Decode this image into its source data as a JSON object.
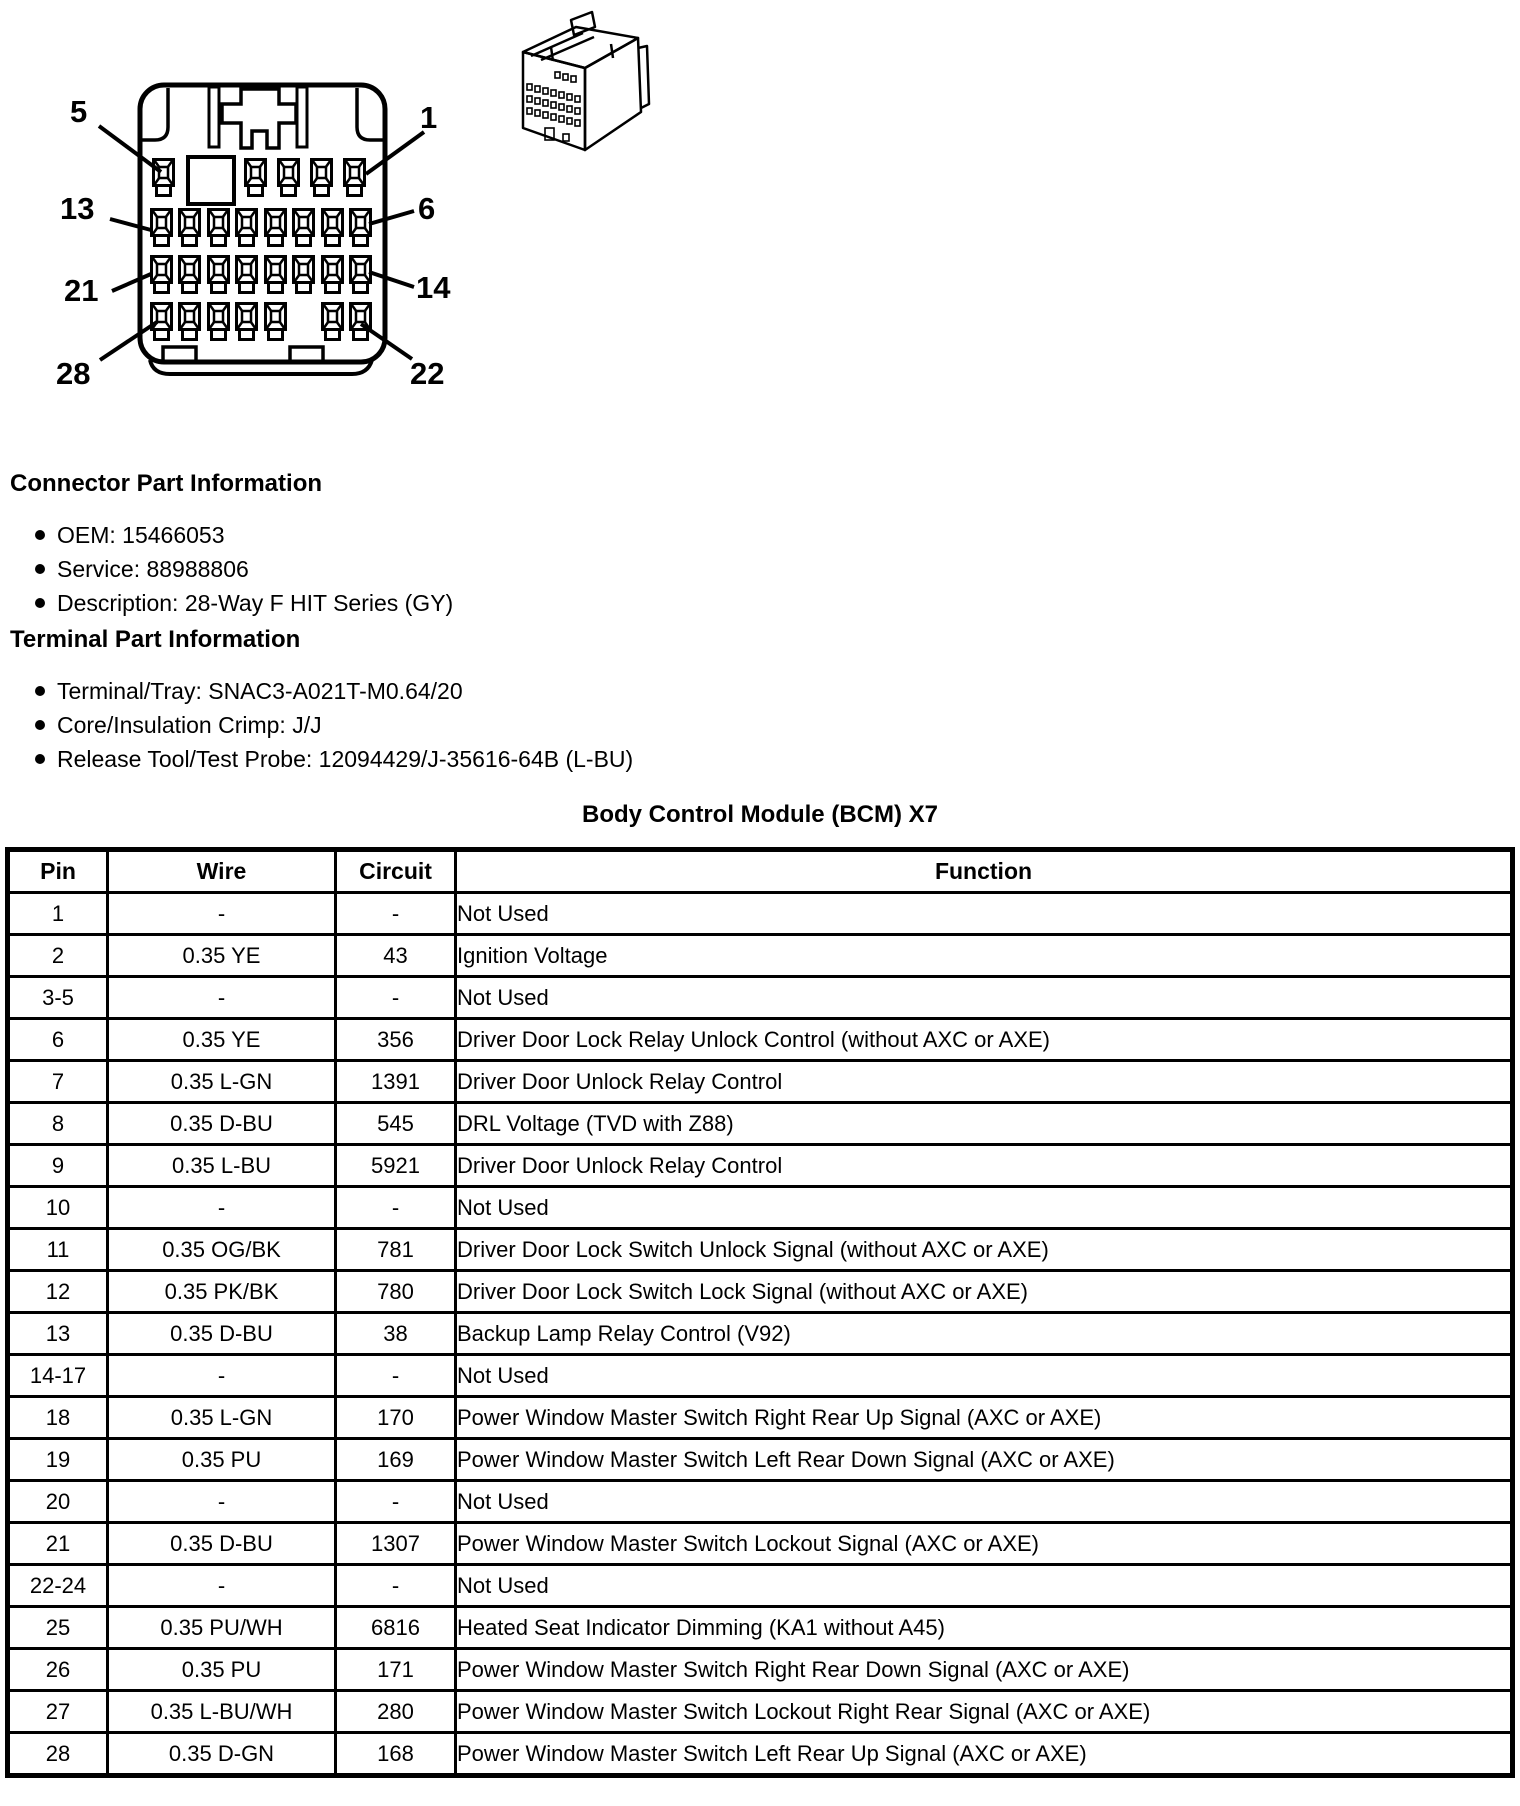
{
  "diagram": {
    "pin_labels": {
      "top_left": "5",
      "top_right": "1",
      "row2_left": "13",
      "row2_right": "6",
      "row3_left": "21",
      "row3_right": "14",
      "bottom_left": "28",
      "bottom_right": "22"
    }
  },
  "connector_info": {
    "heading": "Connector Part Information",
    "items": [
      "OEM: 15466053",
      "Service: 88988806",
      "Description: 28-Way F HIT Series (GY)"
    ]
  },
  "terminal_info": {
    "heading": "Terminal Part Information",
    "items": [
      "Terminal/Tray: SNAC3-A021T-M0.64/20",
      "Core/Insulation Crimp: J/J",
      "Release Tool/Test Probe: 12094429/J-35616-64B (L-BU)"
    ]
  },
  "table": {
    "title": "Body Control Module (BCM) X7",
    "headers": [
      "Pin",
      "Wire",
      "Circuit",
      "Function"
    ],
    "rows": [
      [
        "1",
        "-",
        "-",
        "Not Used"
      ],
      [
        "2",
        "0.35 YE",
        "43",
        "Ignition Voltage"
      ],
      [
        "3-5",
        "-",
        "-",
        "Not Used"
      ],
      [
        "6",
        "0.35 YE",
        "356",
        "Driver Door Lock Relay Unlock Control (without AXC or AXE)"
      ],
      [
        "7",
        "0.35 L-GN",
        "1391",
        "Driver Door Unlock Relay Control"
      ],
      [
        "8",
        "0.35 D-BU",
        "545",
        "DRL Voltage (TVD with Z88)"
      ],
      [
        "9",
        "0.35 L-BU",
        "5921",
        "Driver Door Unlock Relay Control"
      ],
      [
        "10",
        "-",
        "-",
        "Not Used"
      ],
      [
        "11",
        "0.35 OG/BK",
        "781",
        "Driver Door Lock Switch Unlock Signal (without AXC or AXE)"
      ],
      [
        "12",
        "0.35 PK/BK",
        "780",
        "Driver Door Lock Switch Lock Signal (without AXC or AXE)"
      ],
      [
        "13",
        "0.35 D-BU",
        "38",
        "Backup Lamp Relay Control (V92)"
      ],
      [
        "14-17",
        "-",
        "-",
        "Not Used"
      ],
      [
        "18",
        "0.35 L-GN",
        "170",
        "Power Window Master Switch Right Rear Up Signal (AXC or AXE)"
      ],
      [
        "19",
        "0.35 PU",
        "169",
        "Power Window Master Switch Left Rear Down Signal (AXC or AXE)"
      ],
      [
        "20",
        "-",
        "-",
        "Not Used"
      ],
      [
        "21",
        "0.35 D-BU",
        "1307",
        "Power Window Master Switch Lockout Signal (AXC or AXE)"
      ],
      [
        "22-24",
        "-",
        "-",
        "Not Used"
      ],
      [
        "25",
        "0.35 PU/WH",
        "6816",
        "Heated Seat Indicator Dimming (KA1 without A45)"
      ],
      [
        "26",
        "0.35 PU",
        "171",
        "Power Window Master Switch Right Rear Down Signal (AXC or AXE)"
      ],
      [
        "27",
        "0.35 L-BU/WH",
        "280",
        "Power Window Master Switch Lockout Right Rear Signal (AXC or AXE)"
      ],
      [
        "28",
        "0.35 D-GN",
        "168",
        "Power Window Master Switch Left Rear Up Signal (AXC or AXE)"
      ]
    ]
  }
}
